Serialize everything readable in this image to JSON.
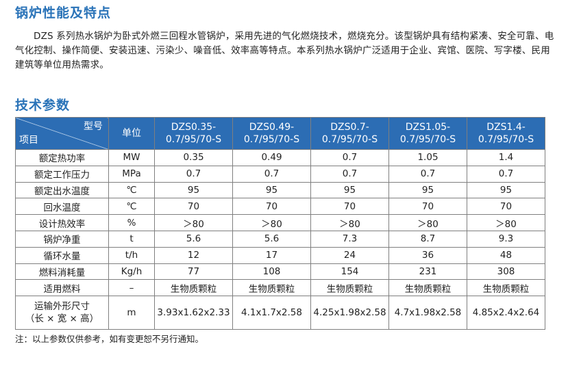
{
  "section1": {
    "title": "锅炉性能及特点",
    "intro": "DZS 系列热水锅炉为卧式外燃三回程水管锅炉，采用先进的气化燃烧技术，燃烧充分。该型锅炉具有结构紧凑、安全可靠、电气化控制、操作简便、安装迅速、污染少、噪音低、效率高等特点。本系列热水锅炉广泛适用于企业、宾馆、医院、写字楼、民用建筑等单位用热需求。"
  },
  "section2": {
    "title": "技术参数"
  },
  "table": {
    "corner_top": "型号",
    "corner_bottom": "项目",
    "unit_header": "单位",
    "models": [
      {
        "line1": "DZS0.35-",
        "line2": "0.7/95/70-S"
      },
      {
        "line1": "DZS0.49-",
        "line2": "0.7/95/70-S"
      },
      {
        "line1": "DZS0.7-",
        "line2": "0.7/95/70-S"
      },
      {
        "line1": "DZS1.05-",
        "line2": "0.7/95/70-S"
      },
      {
        "line1": "DZS1.4-",
        "line2": "0.7/95/70-S"
      }
    ],
    "rows": [
      {
        "item": "额定热功率",
        "unit": "MW",
        "values": [
          "0.35",
          "0.49",
          "0.7",
          "1.05",
          "1.4"
        ]
      },
      {
        "item": "额定工作压力",
        "unit": "MPa",
        "values": [
          "0.7",
          "0.7",
          "0.7",
          "0.7",
          "0.7"
        ]
      },
      {
        "item": "额定出水温度",
        "unit": "℃",
        "values": [
          "95",
          "95",
          "95",
          "95",
          "95"
        ]
      },
      {
        "item": "回水温度",
        "unit": "℃",
        "values": [
          "70",
          "70",
          "70",
          "70",
          "70"
        ]
      },
      {
        "item": "设计热效率",
        "unit": "%",
        "values": [
          "＞80",
          "＞80",
          "＞80",
          "＞80",
          "＞80"
        ]
      },
      {
        "item": "锅炉净重",
        "unit": "t",
        "values": [
          "5.6",
          "5.6",
          "7.3",
          "8.7",
          "9.3"
        ]
      },
      {
        "item": "循环水量",
        "unit": "t/h",
        "values": [
          "12",
          "17",
          "24",
          "36",
          "48"
        ]
      },
      {
        "item": "燃料消耗量",
        "unit": "Kg/h",
        "values": [
          "77",
          "108",
          "154",
          "231",
          "308"
        ]
      },
      {
        "item": "适用燃料",
        "unit": "–",
        "values": [
          "生物质颗粒",
          "生物质颗粒",
          "生物质颗粒",
          "生物质颗粒",
          "生物质颗粒"
        ]
      }
    ],
    "size_row": {
      "item_line1": "运输外形尺寸",
      "item_line2": "（长 × 宽 × 高）",
      "unit": "m",
      "values": [
        "3.93x1.62x2.33",
        "4.1x1.7x2.58",
        "4.25x1.98x2.58",
        "4.7x1.98x2.58",
        "4.85x2.4x2.64"
      ]
    }
  },
  "note": "注：以上参数仅供参考，如有变更恕不另行通知。"
}
